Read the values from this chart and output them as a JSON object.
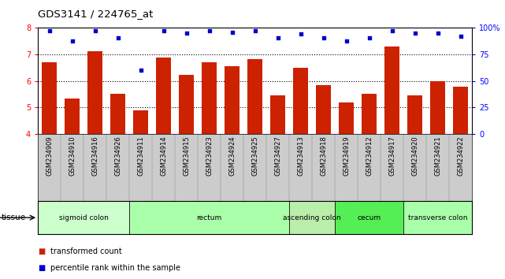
{
  "title": "GDS3141 / 224765_at",
  "samples": [
    "GSM234909",
    "GSM234910",
    "GSM234916",
    "GSM234926",
    "GSM234911",
    "GSM234914",
    "GSM234915",
    "GSM234923",
    "GSM234924",
    "GSM234925",
    "GSM234927",
    "GSM234913",
    "GSM234918",
    "GSM234919",
    "GSM234912",
    "GSM234917",
    "GSM234920",
    "GSM234921",
    "GSM234922"
  ],
  "bar_values": [
    6.7,
    5.35,
    7.12,
    5.52,
    4.88,
    6.87,
    6.22,
    6.7,
    6.55,
    6.83,
    5.45,
    6.5,
    5.85,
    5.18,
    5.5,
    7.3,
    5.45,
    5.98,
    5.78
  ],
  "percentile_values": [
    97,
    88,
    97,
    91,
    60,
    97,
    95,
    97,
    96,
    97,
    91,
    94,
    91,
    88,
    91,
    97,
    95,
    95,
    92
  ],
  "bar_color": "#CC2200",
  "dot_color": "#0000CC",
  "ylim_left": [
    4,
    8
  ],
  "ylim_right": [
    0,
    100
  ],
  "yticks_left": [
    4,
    5,
    6,
    7,
    8
  ],
  "yticks_right": [
    0,
    25,
    50,
    75,
    100
  ],
  "ytick_labels_right": [
    "0",
    "25",
    "50",
    "75",
    "100%"
  ],
  "tissue_groups": [
    {
      "label": "sigmoid colon",
      "start": 0,
      "end": 4,
      "color": "#CCFFCC"
    },
    {
      "label": "rectum",
      "start": 4,
      "end": 11,
      "color": "#AAFFAA"
    },
    {
      "label": "ascending colon",
      "start": 11,
      "end": 13,
      "color": "#BBEEAA"
    },
    {
      "label": "cecum",
      "start": 13,
      "end": 16,
      "color": "#55EE55"
    },
    {
      "label": "transverse colon",
      "start": 16,
      "end": 19,
      "color": "#AAFFAA"
    }
  ],
  "legend_bar_label": "transformed count",
  "legend_dot_label": "percentile rank within the sample",
  "tick_area_color": "#CCCCCC"
}
